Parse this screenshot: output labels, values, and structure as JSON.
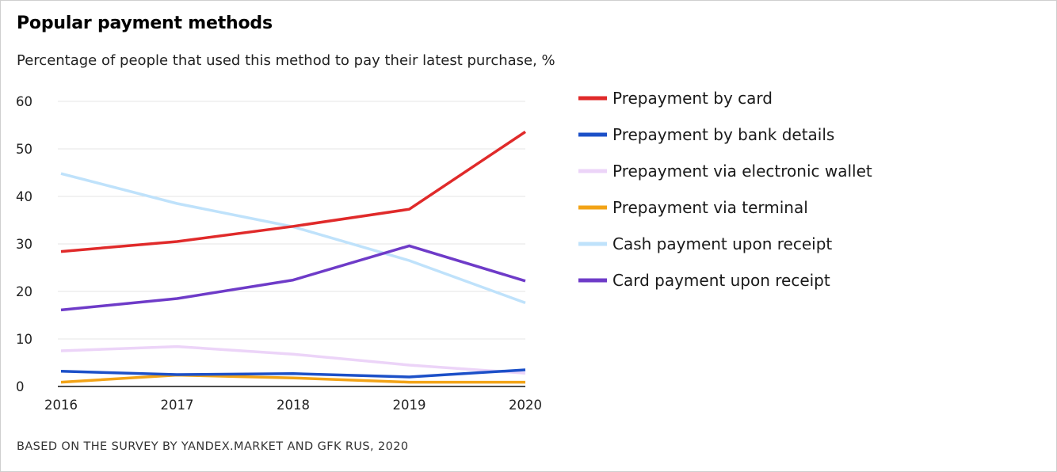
{
  "header": {
    "title": "Popular payment methods",
    "subtitle": "Percentage of people that used this method to pay their latest purchase, %"
  },
  "footer": {
    "source": "BASED ON THE SURVEY BY YANDEX.MARKET AND GFK RUS, 2020"
  },
  "chart_data": {
    "type": "line",
    "title": "Popular payment methods",
    "subtitle": "Percentage of people that used this method to pay their latest purchase, %",
    "xlabel": "",
    "ylabel": "",
    "x": [
      "2016",
      "2017",
      "2018",
      "2019",
      "2020"
    ],
    "ylim": [
      0,
      60
    ],
    "yticks": [
      0,
      10,
      20,
      30,
      40,
      50,
      60
    ],
    "grid": true,
    "legend_position": "right",
    "series": [
      {
        "name": "Prepayment by card",
        "color": "#e02a2a",
        "values": [
          28.4,
          30.5,
          33.7,
          37.3,
          53.6
        ]
      },
      {
        "name": "Prepayment by bank details",
        "color": "#1c50c8",
        "values": [
          3.2,
          2.5,
          2.7,
          2.0,
          3.5
        ]
      },
      {
        "name": "Prepayment via electronic wallet",
        "color": "#ecd4f8",
        "values": [
          7.5,
          8.4,
          6.8,
          4.5,
          2.8
        ]
      },
      {
        "name": "Prepayment via terminal",
        "color": "#f2a316",
        "values": [
          0.9,
          2.4,
          1.8,
          0.9,
          0.9
        ]
      },
      {
        "name": "Cash payment upon receipt",
        "color": "#bfe2fb",
        "values": [
          44.8,
          38.5,
          33.6,
          26.5,
          17.6
        ]
      },
      {
        "name": "Card payment upon receipt",
        "color": "#6e3bc8",
        "values": [
          16.1,
          18.5,
          22.4,
          29.6,
          22.2
        ]
      }
    ]
  }
}
